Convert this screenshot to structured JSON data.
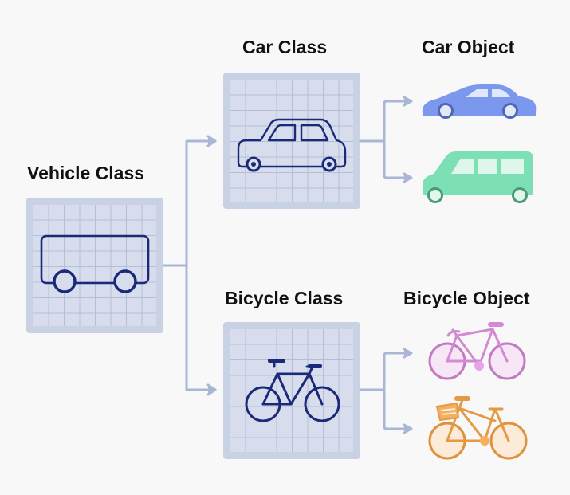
{
  "labels": {
    "vehicle_class": "Vehicle Class",
    "car_class": "Car Class",
    "bicycle_class": "Bicycle Class",
    "car_object": "Car Object",
    "bicycle_object": "Bicycle Object"
  },
  "colors": {
    "background": "#f8f8f8",
    "panel": "#c9d1e4",
    "grid_line": "#b4bed6",
    "outline_icon": "#1b2a78",
    "connector": "#a9b6d6",
    "car_object_1": "#7b98ee",
    "car_object_2": "#7ddfb4",
    "bicycle_object_1": "#e8a4e6",
    "bicycle_object_2": "#f3b060"
  }
}
